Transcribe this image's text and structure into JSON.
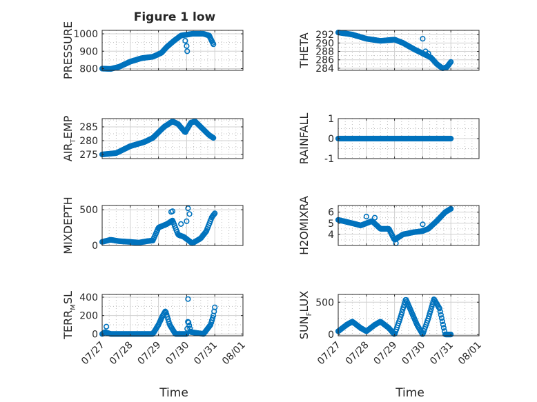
{
  "figure_title": "Figure 1 low",
  "xlabel_bottom": "Time",
  "x_ticks": [
    "07/27",
    "07/28",
    "07/29",
    "07/30",
    "07/31",
    "08/01"
  ],
  "marker_color": "#0072BD",
  "chart_data": [
    {
      "type": "scatter",
      "panel": "row1-left",
      "title": "Figure 1 low",
      "ylabel": "PRESSURE",
      "ylabel_sub": null,
      "xlim": [
        0,
        5
      ],
      "ylim": [
        790,
        1020
      ],
      "yticks": [
        800,
        900,
        1000
      ],
      "yticklabels": [
        "800",
        "900",
        "1000"
      ],
      "grid": true,
      "show_xticklabels": false,
      "anchors": [
        [
          0,
          800
        ],
        [
          0.3,
          798
        ],
        [
          0.6,
          810
        ],
        [
          1.0,
          840
        ],
        [
          1.4,
          860
        ],
        [
          1.8,
          868
        ],
        [
          2.1,
          890
        ],
        [
          2.3,
          925
        ],
        [
          2.55,
          960
        ],
        [
          2.8,
          990
        ],
        [
          3.0,
          995
        ],
        [
          3.2,
          1000
        ],
        [
          3.6,
          1000
        ],
        [
          3.8,
          990
        ],
        [
          3.95,
          940
        ]
      ],
      "n_points": 160,
      "outliers": [
        [
          2.95,
          960
        ],
        [
          3.0,
          930
        ],
        [
          3.02,
          900
        ]
      ]
    },
    {
      "type": "scatter",
      "panel": "row1-right",
      "ylabel": "THETA",
      "ylabel_sub": null,
      "xlim": [
        0,
        5
      ],
      "ylim": [
        283.5,
        293
      ],
      "yticks": [
        284,
        286,
        288,
        290,
        292
      ],
      "yticklabels": [
        "284",
        "286",
        "288",
        "290",
        "292"
      ],
      "grid": true,
      "show_xticklabels": false,
      "anchors": [
        [
          0,
          292.5
        ],
        [
          0.5,
          292
        ],
        [
          1.0,
          291
        ],
        [
          1.5,
          290.5
        ],
        [
          2.0,
          290.8
        ],
        [
          2.3,
          290
        ],
        [
          2.7,
          288.5
        ],
        [
          3.0,
          287.5
        ],
        [
          3.3,
          286.5
        ],
        [
          3.5,
          285
        ],
        [
          3.7,
          284
        ],
        [
          3.85,
          284.2
        ],
        [
          4.0,
          285.5
        ]
      ],
      "n_points": 160,
      "outliers": [
        [
          3.0,
          291
        ],
        [
          3.1,
          288
        ],
        [
          3.2,
          287.5
        ]
      ]
    },
    {
      "type": "scatter",
      "panel": "row2-left",
      "ylabel": "AIR",
      "ylabel_sub": "T",
      "ylabel_post": "EMP",
      "xlim": [
        0,
        5
      ],
      "ylim": [
        273.5,
        288
      ],
      "yticks": [
        275,
        280,
        285
      ],
      "yticklabels": [
        "275",
        "280",
        "285"
      ],
      "grid": true,
      "show_xticklabels": false,
      "anchors": [
        [
          0,
          275
        ],
        [
          0.5,
          275.5
        ],
        [
          1.0,
          278
        ],
        [
          1.5,
          279.5
        ],
        [
          1.8,
          281
        ],
        [
          2.2,
          285
        ],
        [
          2.5,
          287
        ],
        [
          2.7,
          286
        ],
        [
          2.95,
          283
        ],
        [
          3.15,
          286.5
        ],
        [
          3.3,
          287
        ],
        [
          3.6,
          284
        ],
        [
          3.8,
          282
        ],
        [
          3.95,
          281
        ]
      ],
      "n_points": 160,
      "outliers": []
    },
    {
      "type": "scatter",
      "panel": "row2-right",
      "ylabel": "RAINFALL",
      "ylabel_sub": null,
      "xlim": [
        0,
        5
      ],
      "ylim": [
        -1,
        1
      ],
      "yticks": [
        -1,
        0,
        1
      ],
      "yticklabels": [
        "-1",
        "0",
        "1"
      ],
      "grid": true,
      "show_xticklabels": false,
      "anchors": [
        [
          0,
          0
        ],
        [
          4.0,
          0
        ]
      ],
      "n_points": 160,
      "outliers": []
    },
    {
      "type": "scatter",
      "panel": "row3-left",
      "ylabel": "MIXDEPTH",
      "ylabel_sub": null,
      "xlim": [
        0,
        5
      ],
      "ylim": [
        0,
        560
      ],
      "yticks": [
        0,
        500
      ],
      "yticklabels": [
        "0",
        "500"
      ],
      "grid": true,
      "show_xticklabels": false,
      "anchors": [
        [
          0,
          50
        ],
        [
          0.3,
          80
        ],
        [
          0.6,
          60
        ],
        [
          1.0,
          50
        ],
        [
          1.3,
          40
        ],
        [
          1.6,
          60
        ],
        [
          1.8,
          70
        ],
        [
          2.0,
          250
        ],
        [
          2.3,
          300
        ],
        [
          2.5,
          350
        ],
        [
          2.7,
          150
        ],
        [
          2.9,
          120
        ],
        [
          3.2,
          30
        ],
        [
          3.5,
          100
        ],
        [
          3.7,
          200
        ],
        [
          3.9,
          400
        ],
        [
          4.0,
          450
        ]
      ],
      "n_points": 150,
      "outliers": [
        [
          2.45,
          470
        ],
        [
          2.5,
          480
        ],
        [
          2.8,
          300
        ],
        [
          3.0,
          340
        ],
        [
          3.05,
          520
        ],
        [
          3.1,
          440
        ]
      ]
    },
    {
      "type": "scatter",
      "panel": "row3-right",
      "ylabel": "H2OMIXRA",
      "ylabel_sub": null,
      "xlim": [
        0,
        5
      ],
      "ylim": [
        3,
        6.6
      ],
      "yticks": [
        4,
        5,
        6
      ],
      "yticklabels": [
        "4",
        "5",
        "6"
      ],
      "grid": true,
      "show_xticklabels": false,
      "anchors": [
        [
          0,
          5.3
        ],
        [
          0.5,
          5
        ],
        [
          0.8,
          4.8
        ],
        [
          1.2,
          5.2
        ],
        [
          1.5,
          4.5
        ],
        [
          1.8,
          4.5
        ],
        [
          2.0,
          3.5
        ],
        [
          2.3,
          4
        ],
        [
          2.7,
          4.2
        ],
        [
          3.0,
          4.3
        ],
        [
          3.2,
          4.5
        ],
        [
          3.5,
          5.2
        ],
        [
          3.8,
          6
        ],
        [
          4.0,
          6.3
        ]
      ],
      "n_points": 160,
      "outliers": [
        [
          1.0,
          5.6
        ],
        [
          1.3,
          5.5
        ],
        [
          2.05,
          3.2
        ],
        [
          3.0,
          4.9
        ]
      ]
    },
    {
      "type": "scatter",
      "panel": "row4-left",
      "ylabel": "TERR",
      "ylabel_sub": "M",
      "ylabel_post": "SL",
      "xlim": [
        0,
        5
      ],
      "ylim": [
        -20,
        430
      ],
      "yticks": [
        0,
        200,
        400
      ],
      "yticklabels": [
        "0",
        "200",
        "400"
      ],
      "grid": true,
      "show_xticklabels": true,
      "anchors": [
        [
          0,
          0
        ],
        [
          0.1,
          20
        ],
        [
          0.3,
          0
        ],
        [
          1.8,
          0
        ],
        [
          2.0,
          100
        ],
        [
          2.15,
          200
        ],
        [
          2.25,
          250
        ],
        [
          2.4,
          100
        ],
        [
          2.6,
          0
        ],
        [
          3.0,
          0
        ],
        [
          3.05,
          150
        ],
        [
          3.15,
          20
        ],
        [
          3.6,
          0
        ],
        [
          3.85,
          100
        ],
        [
          3.95,
          200
        ],
        [
          4.0,
          290
        ]
      ],
      "n_points": 160,
      "outliers": [
        [
          0.15,
          80
        ],
        [
          3.05,
          380
        ]
      ]
    },
    {
      "type": "scatter",
      "panel": "row4-right",
      "ylabel": "SUN",
      "ylabel_sub": "F",
      "ylabel_post": "LUX",
      "xlim": [
        0,
        5
      ],
      "ylim": [
        -20,
        620
      ],
      "yticks": [
        0,
        500
      ],
      "yticklabels": [
        "0",
        "500"
      ],
      "grid": true,
      "show_xticklabels": true,
      "anchors": [
        [
          0,
          50
        ],
        [
          0.3,
          150
        ],
        [
          0.5,
          200
        ],
        [
          0.8,
          100
        ],
        [
          1.0,
          50
        ],
        [
          1.3,
          150
        ],
        [
          1.5,
          200
        ],
        [
          1.8,
          100
        ],
        [
          2.0,
          0
        ],
        [
          2.2,
          250
        ],
        [
          2.4,
          550
        ],
        [
          2.6,
          350
        ],
        [
          2.8,
          150
        ],
        [
          3.0,
          0
        ],
        [
          3.2,
          250
        ],
        [
          3.4,
          550
        ],
        [
          3.6,
          400
        ],
        [
          3.8,
          0
        ],
        [
          4.0,
          0
        ]
      ],
      "n_points": 160,
      "outliers": []
    }
  ]
}
